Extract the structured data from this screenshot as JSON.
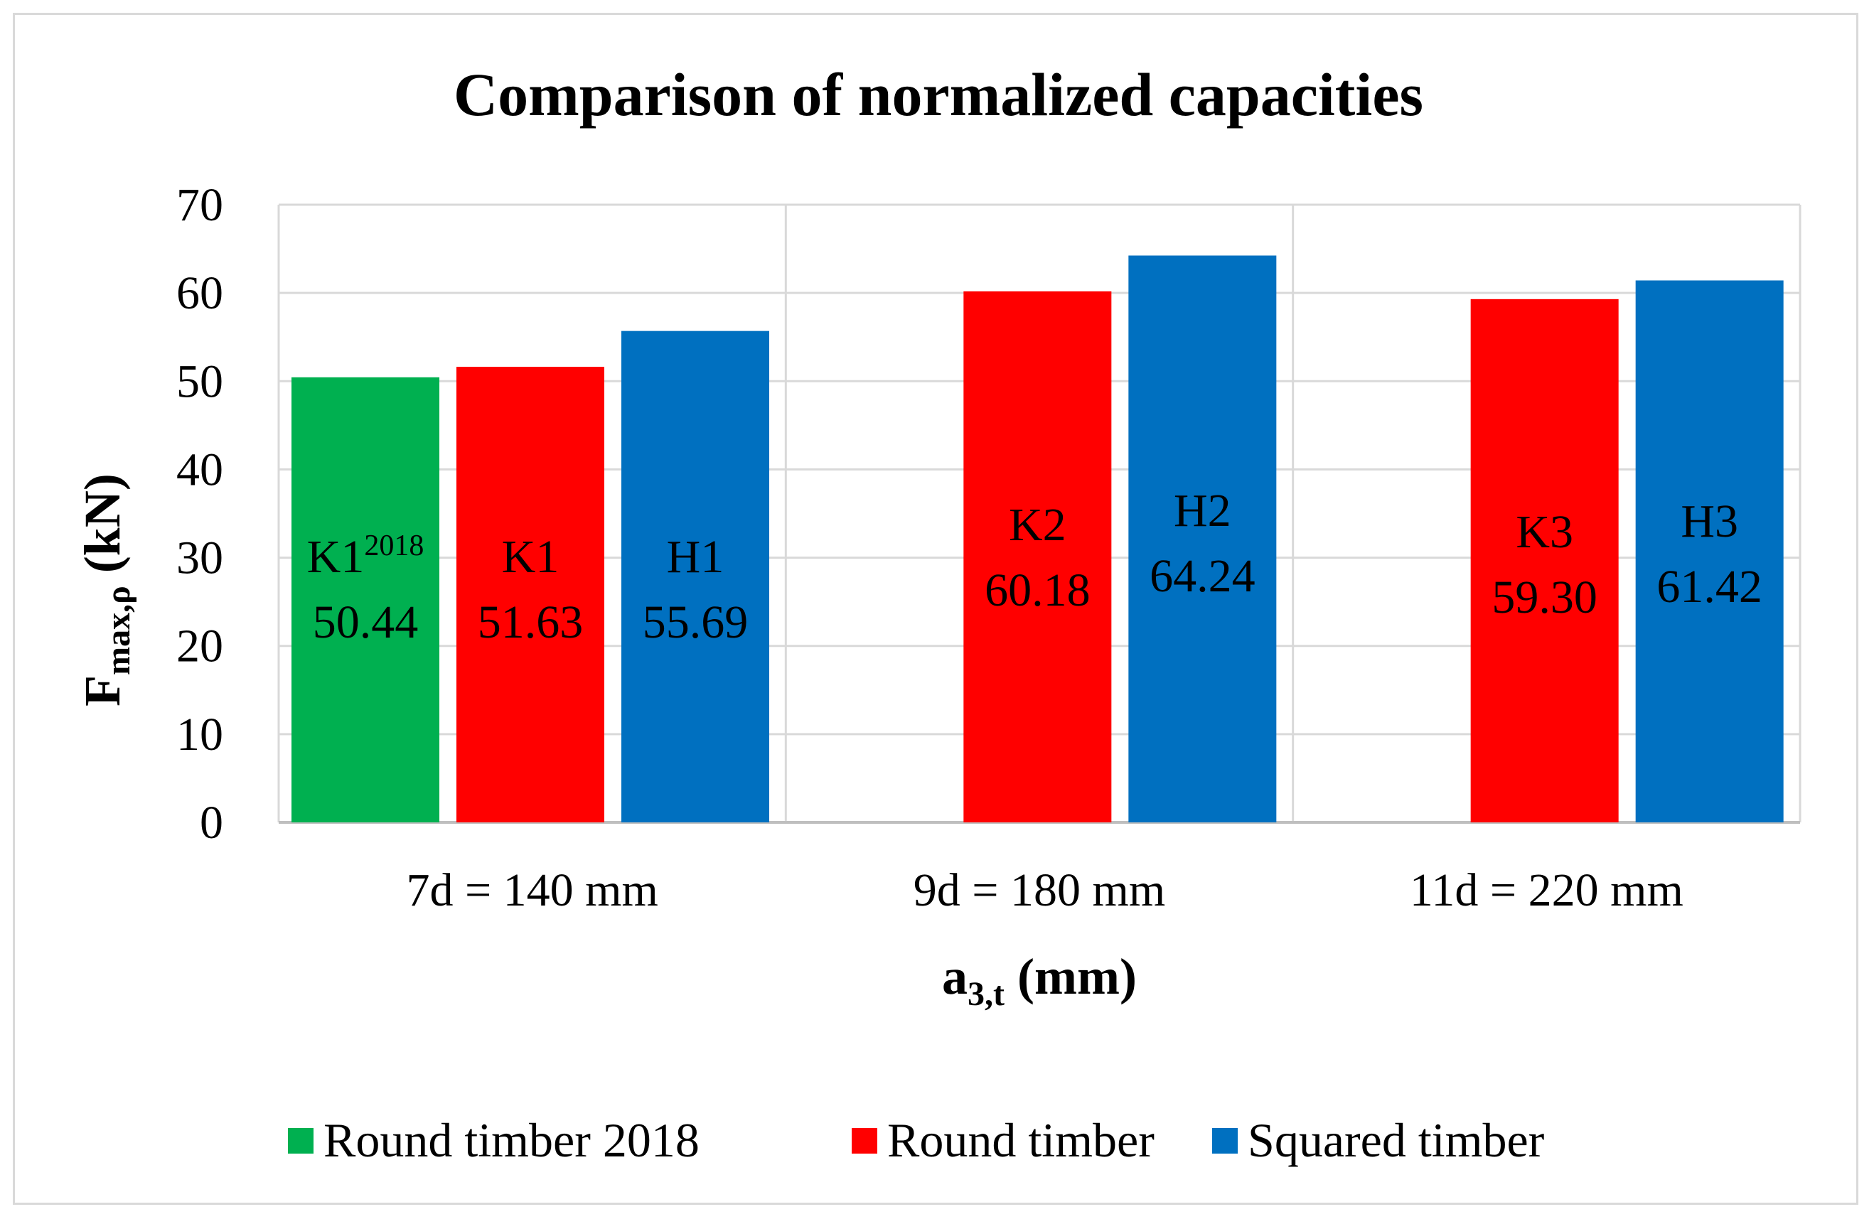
{
  "chart_data": {
    "type": "bar",
    "title": "Comparison of normalized capacities",
    "ylabel": {
      "main": "F",
      "sub": "max,ρ",
      "unit": " (kN)"
    },
    "xlabel": {
      "main": "a",
      "sub": "3,t",
      "unit": " (mm)"
    },
    "ylim": [
      0,
      70
    ],
    "yticks": [
      0,
      10,
      20,
      30,
      40,
      50,
      60,
      70
    ],
    "grid": true,
    "categories": [
      "7d = 140 mm",
      "9d = 180 mm",
      "11d = 220 mm"
    ],
    "series": [
      {
        "name": "Round timber 2018",
        "color": "#00b050",
        "values": [
          50.44,
          null,
          null
        ],
        "labels": [
          "K1",
          null,
          null
        ],
        "label_sup": [
          "2018",
          null,
          null
        ]
      },
      {
        "name": "Round timber",
        "color": "#ff0000",
        "values": [
          51.63,
          60.18,
          59.3
        ],
        "labels": [
          "K1",
          "K2",
          "K3"
        ],
        "label_sup": [
          null,
          null,
          null
        ]
      },
      {
        "name": "Squared timber",
        "color": "#0070c0",
        "values": [
          55.69,
          64.24,
          61.42
        ],
        "labels": [
          "H1",
          "H2",
          "H3"
        ],
        "label_sup": [
          null,
          null,
          null
        ]
      }
    ],
    "value_labels": [
      [
        "50.44",
        null,
        null
      ],
      [
        "51.63",
        "60.18",
        "59.30"
      ],
      [
        "55.69",
        "64.24",
        "61.42"
      ]
    ],
    "legend_position": "bottom"
  }
}
